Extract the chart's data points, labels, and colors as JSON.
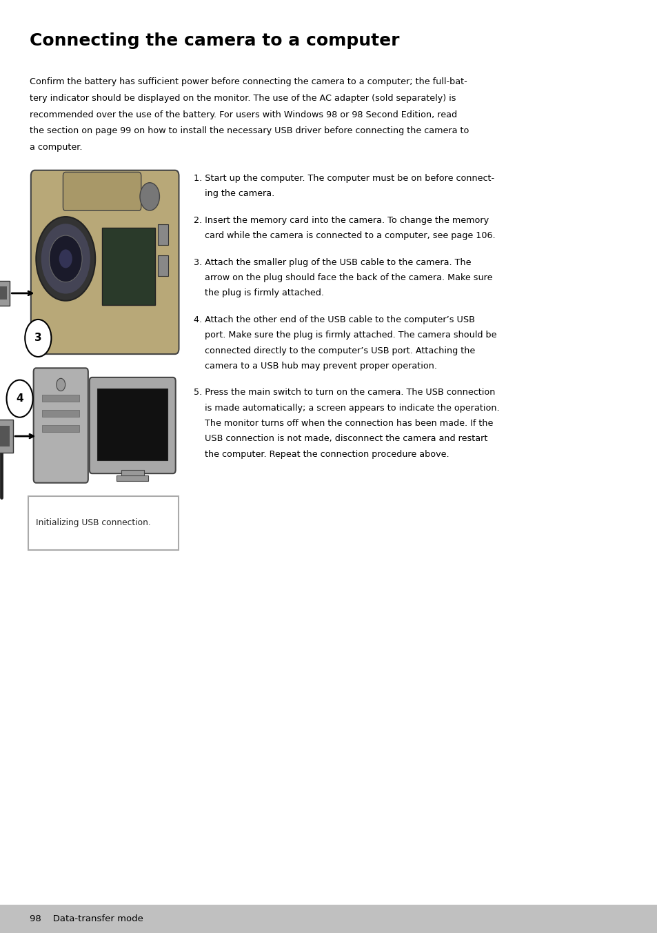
{
  "title": "Connecting the camera to a computer",
  "intro_lines": [
    "Confirm the battery has sufficient power before connecting the camera to a computer; the full-bat-",
    "tery indicator should be displayed on the monitor. The use of the AC adapter (sold separately) is",
    "recommended over the use of the battery. For users with Windows 98 or 98 Second Edition, read",
    "the section on page 99 on how to install the necessary USB driver before connecting the camera to",
    "a computer."
  ],
  "step_texts": [
    [
      "1. Start up the computer. The computer must be on before connect-",
      "    ing the camera."
    ],
    [
      "2. Insert the memory card into the camera. To change the memory",
      "    card while the camera is connected to a computer, see page 106."
    ],
    [
      "3. Attach the smaller plug of the USB cable to the camera. The",
      "    arrow on the plug should face the back of the camera. Make sure",
      "    the plug is firmly attached."
    ],
    [
      "4. Attach the other end of the USB cable to the computer’s USB",
      "    port. Make sure the plug is firmly attached. The camera should be",
      "    connected directly to the computer’s USB port. Attaching the",
      "    camera to a USB hub may prevent proper operation."
    ],
    [
      "5. Press the main switch to turn on the camera. The USB connection",
      "    is made automatically; a screen appears to indicate the operation.",
      "    The monitor turns off when the connection has been made. If the",
      "    USB connection is not made, disconnect the camera and restart",
      "    the computer. Repeat the connection procedure above."
    ]
  ],
  "lcd_text": "Initializing USB connection.",
  "footer_text": "98    Data-transfer mode",
  "bg_color": "#ffffff",
  "footer_bg": "#c0c0c0",
  "text_color": "#000000"
}
